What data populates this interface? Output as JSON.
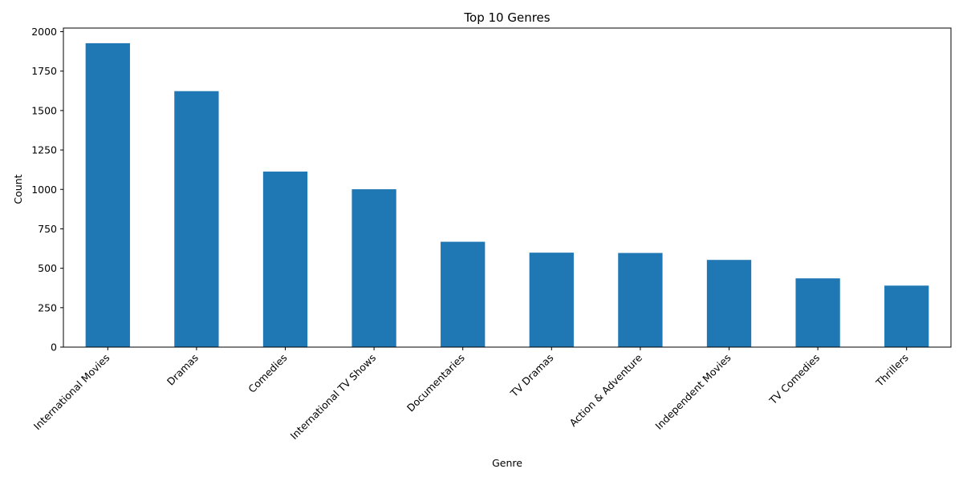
{
  "chart_data": {
    "type": "bar",
    "title": "Top 10 Genres",
    "xlabel": "Genre",
    "ylabel": "Count",
    "categories": [
      "International Movies",
      "Dramas",
      "Comedies",
      "International TV Shows",
      "Documentaries",
      "TV Dramas",
      "Action & Adventure",
      "Independent Movies",
      "TV Comedies",
      "Thrillers"
    ],
    "values": [
      1927,
      1623,
      1113,
      1001,
      668,
      599,
      597,
      553,
      436,
      390
    ],
    "ylim": [
      0,
      2023
    ],
    "yticks": [
      0,
      250,
      500,
      750,
      1000,
      1250,
      1500,
      1750,
      2000
    ],
    "ytick_labels": [
      "0",
      "250",
      "500",
      "750",
      "1000",
      "1250",
      "1500",
      "1750",
      "2000"
    ],
    "grid": false,
    "bar_color": "#1f77b4"
  }
}
